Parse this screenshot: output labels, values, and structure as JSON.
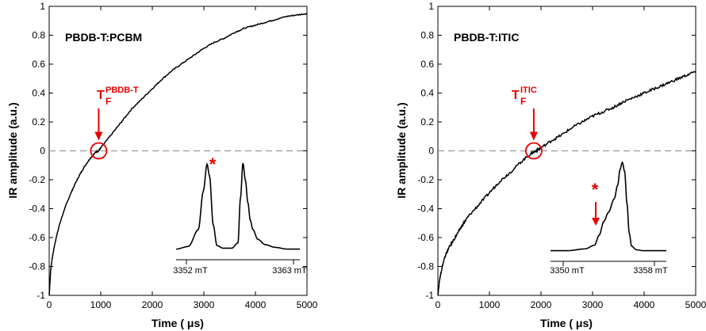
{
  "colors": {
    "trace": "#000000",
    "annotation": "#e60000",
    "zero_line": "#999999"
  },
  "chart_data": [
    {
      "type": "line",
      "title": "PBDB-T:PCBM",
      "xlabel": "Time ( μs)",
      "ylabel": "IR amplitude (a.u.)",
      "xlim": [
        0,
        5000
      ],
      "ylim": [
        -1,
        1
      ],
      "x_ticks": [
        0,
        1000,
        2000,
        3000,
        4000,
        5000
      ],
      "x_tick_labels": [
        "0",
        "1000",
        "2000",
        "3000",
        "4000",
        "5000"
      ],
      "y_ticks": [
        -1,
        -0.8,
        -0.6,
        -0.4,
        -0.2,
        0,
        0.2,
        0.4,
        0.6,
        0.8,
        1
      ],
      "y_tick_labels": [
        "-1",
        "-0.8",
        "-0.6",
        "-0.4",
        "-0.2",
        "0",
        "0.2",
        "0.4",
        "0.6",
        "0.8",
        "1"
      ],
      "zero_line": true,
      "series": [
        {
          "x": [
            0,
            30,
            60,
            100,
            150,
            200,
            300,
            400,
            500,
            600,
            700,
            800,
            900,
            960,
            1000,
            1200,
            1400,
            1600,
            1800,
            2000,
            2200,
            2400,
            2600,
            2800,
            3000,
            3200,
            3400,
            3600,
            3800,
            4000,
            4200,
            4400,
            4600,
            4800,
            5000
          ],
          "y": [
            -1.0,
            -0.82,
            -0.74,
            -0.66,
            -0.58,
            -0.51,
            -0.4,
            -0.31,
            -0.23,
            -0.16,
            -0.1,
            -0.05,
            -0.01,
            0.0,
            0.02,
            0.11,
            0.2,
            0.29,
            0.36,
            0.43,
            0.5,
            0.56,
            0.61,
            0.66,
            0.71,
            0.75,
            0.78,
            0.82,
            0.85,
            0.87,
            0.89,
            0.91,
            0.93,
            0.94,
            0.95
          ]
        }
      ],
      "marker_label": "T",
      "marker_subscript": "F",
      "marker_superscript": "PBDB-T",
      "marker_x": 960,
      "inset": {
        "type": "line",
        "x_tick_labels": [
          "3352 mT",
          "3363 mT"
        ],
        "star": "*",
        "x": [
          0,
          0.1,
          0.18,
          0.22,
          0.25,
          0.27,
          0.3,
          0.33,
          0.38,
          0.45,
          0.5,
          0.52,
          0.54,
          0.56,
          0.58,
          0.6,
          0.62,
          0.66,
          0.72,
          0.8,
          0.9,
          1.0
        ],
        "y": [
          0.03,
          0.06,
          0.25,
          0.68,
          0.98,
          0.85,
          0.3,
          0.07,
          0.04,
          0.04,
          0.1,
          0.6,
          0.99,
          0.8,
          0.55,
          0.35,
          0.25,
          0.14,
          0.08,
          0.05,
          0.03,
          0.03
        ]
      }
    },
    {
      "type": "line",
      "title": "PBDB-T:ITIC",
      "xlabel": "Time ( μs)",
      "ylabel": "IR amplitude (a.u.)",
      "xlim": [
        0,
        5000
      ],
      "ylim": [
        -1,
        1
      ],
      "x_ticks": [
        0,
        1000,
        2000,
        3000,
        4000,
        5000
      ],
      "x_tick_labels": [
        "0",
        "1000",
        "2000",
        "3000",
        "4000",
        "5000"
      ],
      "y_ticks": [
        -1,
        -0.8,
        -0.6,
        -0.4,
        -0.2,
        0,
        0.2,
        0.4,
        0.6,
        0.8,
        1
      ],
      "y_tick_labels": [
        "-1",
        "-0.8",
        "-0.6",
        "-0.4",
        "-0.2",
        "0",
        "0.2",
        "0.4",
        "0.6",
        "0.8",
        "1"
      ],
      "zero_line": true,
      "series": [
        {
          "x": [
            0,
            30,
            60,
            100,
            150,
            200,
            300,
            400,
            500,
            600,
            800,
            1000,
            1200,
            1400,
            1600,
            1800,
            1900,
            2000,
            2200,
            2400,
            2600,
            2800,
            3000,
            3200,
            3400,
            3600,
            3800,
            4000,
            4200,
            4400,
            4600,
            4800,
            5000
          ],
          "y": [
            -1.0,
            -0.9,
            -0.84,
            -0.78,
            -0.72,
            -0.68,
            -0.62,
            -0.56,
            -0.5,
            -0.45,
            -0.37,
            -0.29,
            -0.21,
            -0.15,
            -0.08,
            -0.02,
            0.0,
            0.02,
            0.07,
            0.11,
            0.16,
            0.2,
            0.24,
            0.27,
            0.3,
            0.34,
            0.37,
            0.4,
            0.43,
            0.46,
            0.49,
            0.52,
            0.55
          ]
        }
      ],
      "marker_label": "T",
      "marker_subscript": "F",
      "marker_superscript": "ITIC",
      "marker_x": 1860,
      "inset": {
        "type": "line",
        "x_tick_labels": [
          "3350 mT",
          "3358 mT"
        ],
        "star": "*",
        "x": [
          0,
          0.15,
          0.3,
          0.38,
          0.42,
          0.46,
          0.5,
          0.55,
          0.58,
          0.6,
          0.62,
          0.64,
          0.66,
          0.68,
          0.7,
          0.74,
          0.8,
          0.9,
          1.0
        ],
        "y": [
          0.03,
          0.03,
          0.05,
          0.09,
          0.2,
          0.35,
          0.45,
          0.6,
          0.75,
          0.92,
          1.0,
          0.9,
          0.55,
          0.22,
          0.08,
          0.04,
          0.03,
          0.03,
          0.03
        ]
      }
    }
  ]
}
